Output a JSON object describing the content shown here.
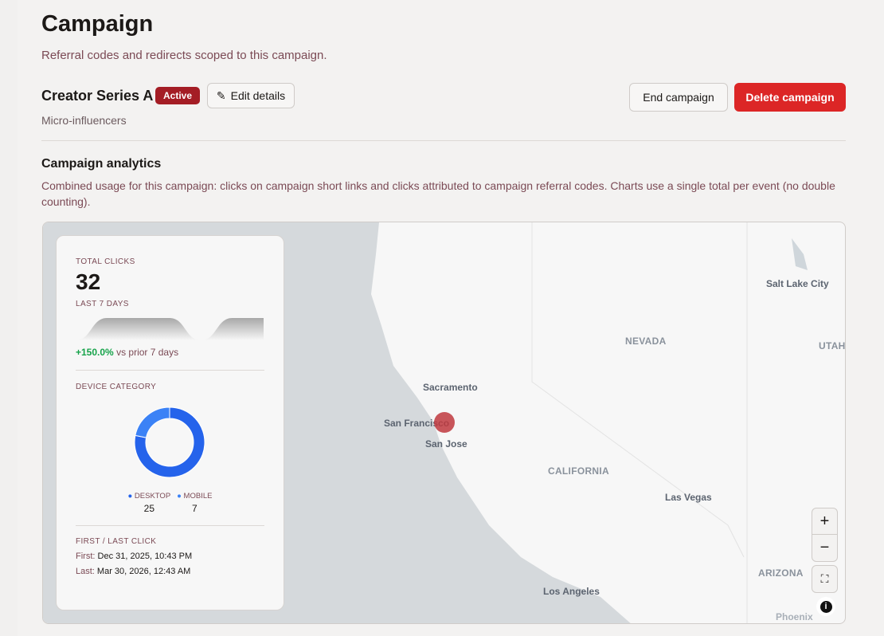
{
  "header": {
    "title": "Campaign",
    "subtitle": "Referral codes and redirects scoped to this campaign."
  },
  "campaign": {
    "name": "Creator Series A",
    "status": "Active",
    "segment": "Micro-influencers",
    "edit_label": "Edit details",
    "end_label": "End campaign",
    "delete_label": "Delete campaign"
  },
  "analytics": {
    "title": "Campaign analytics",
    "description": "Combined usage for this campaign: clicks on campaign short links and clicks attributed to campaign referral codes. Charts use a single total per event (no double counting)."
  },
  "stats": {
    "total_label": "TOTAL CLICKS",
    "total": "32",
    "last7_label": "LAST 7 DAYS",
    "change": "+150.0%",
    "change_suffix": "vs prior 7 days",
    "device_label": "DEVICE CATEGORY",
    "devices": [
      {
        "name": "DESKTOP",
        "count": "25",
        "color": "#2563eb"
      },
      {
        "name": "MOBILE",
        "count": "7",
        "color": "#3b82f6"
      }
    ],
    "firstlast_label": "FIRST / LAST CLICK",
    "first_key": "First:",
    "first": "Dec 31, 2025, 10:43 PM",
    "last_key": "Last:",
    "last": "Mar 30, 2026, 12:43 AM"
  },
  "chart_data": {
    "type": "area",
    "values": [
      0,
      1,
      1,
      1,
      0,
      1,
      1
    ]
  },
  "map": {
    "cities": [
      "Salt Lake City",
      "Sacramento",
      "San Francisco",
      "San Jose",
      "Las Vegas",
      "Los Angeles",
      "Phoenix"
    ],
    "states": [
      "NEVADA",
      "UTAH",
      "CALIFORNIA",
      "ARIZONA"
    ],
    "marker_color": "#c0383e",
    "controls": {
      "zoom_in": "+",
      "zoom_out": "−"
    }
  }
}
